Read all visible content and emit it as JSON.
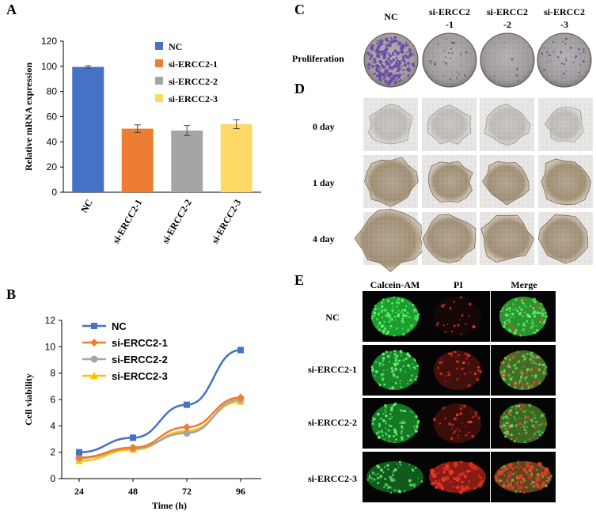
{
  "panels": {
    "A": {
      "letter": "A"
    },
    "B": {
      "letter": "B"
    },
    "C": {
      "letter": "C",
      "row_label": "Proliferation",
      "columns": [
        {
          "line1": "NC",
          "line2": ""
        },
        {
          "line1": "si-ERCC2",
          "line2": "-1"
        },
        {
          "line1": "si-ERCC2",
          "line2": "-2"
        },
        {
          "line1": "si-ERCC2",
          "line2": "-3"
        }
      ]
    },
    "D": {
      "letter": "D",
      "rows": [
        "0 day",
        "1 day",
        "4 day"
      ]
    },
    "E": {
      "letter": "E",
      "columns": [
        "Calcein-AM",
        "PI",
        "Merge"
      ],
      "rows": [
        "NC",
        "si-ERCC2-1",
        "si-ERCC2-2",
        "si-ERCC2-3"
      ]
    }
  },
  "colors": {
    "NC": "#4472c4",
    "si-ERCC2-1": "#ed7d31",
    "si-ERCC2-2": "#a5a5a5",
    "si-ERCC2-3": "#ffd966",
    "plate_bg": "#a8a4a4",
    "colony": "#6a4aa8",
    "fluor_green": "#22c43a",
    "fluor_red": "#c8281e"
  },
  "chart_data": [
    {
      "id": "A",
      "type": "bar",
      "title": "",
      "xlabel": "",
      "ylabel": "Relative mRNA expression",
      "ylim": [
        0,
        120
      ],
      "yticks": [
        0,
        20,
        40,
        60,
        80,
        100,
        120
      ],
      "categories": [
        "NC",
        "si-ERCC2-1",
        "si-ERCC2-2",
        "si-ERCC2-3"
      ],
      "values": [
        99.5,
        50.5,
        49,
        54
      ],
      "errors": [
        1,
        3,
        4,
        3.5
      ],
      "legend": [
        "NC",
        "si-ERCC2-1",
        "si-ERCC2-2",
        "si-ERCC2-3"
      ],
      "legend_position": "top-right"
    },
    {
      "id": "B",
      "type": "line",
      "title": "",
      "xlabel": "Time (h)",
      "ylabel": "Cell viability",
      "ylim": [
        0,
        12
      ],
      "yticks": [
        0,
        2,
        4,
        6,
        8,
        10,
        12
      ],
      "x": [
        24,
        48,
        72,
        96
      ],
      "series": [
        {
          "name": "NC",
          "values": [
            2.0,
            3.1,
            5.6,
            9.75
          ],
          "errors": [
            0.1,
            0.25,
            0.15,
            0.15
          ],
          "marker": "square"
        },
        {
          "name": "si-ERCC2-1",
          "values": [
            1.6,
            2.35,
            3.9,
            6.15
          ],
          "errors": [
            0.1,
            0.15,
            0.25,
            0.3
          ],
          "marker": "diamond"
        },
        {
          "name": "si-ERCC2-2",
          "values": [
            1.55,
            2.3,
            3.45,
            6.0
          ],
          "errors": [
            0.1,
            0.1,
            0.2,
            0.3
          ],
          "marker": "circle"
        },
        {
          "name": "si-ERCC2-3",
          "values": [
            1.35,
            2.2,
            3.6,
            5.85
          ],
          "errors": [
            0.1,
            0.1,
            0.2,
            0.3
          ],
          "marker": "triangle"
        }
      ],
      "legend_position": "top-left"
    }
  ]
}
